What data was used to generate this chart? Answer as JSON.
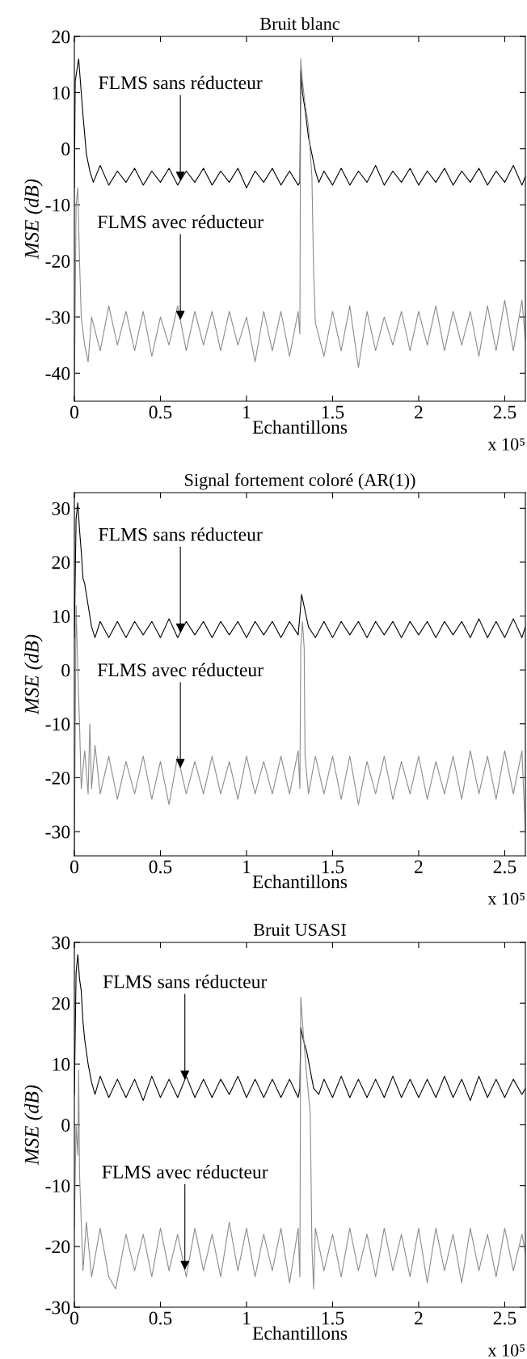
{
  "chart_data": [
    {
      "type": "line",
      "title": "Bruit blanc",
      "xlabel": "Echantillons",
      "ylabel": "MSE (dB)",
      "xlim": [
        0,
        2.62
      ],
      "xticks": [
        0,
        0.5,
        1,
        1.5,
        2,
        2.5
      ],
      "ylim": [
        -45,
        20
      ],
      "yticks": [
        -40,
        -30,
        -20,
        -10,
        0,
        10,
        20
      ],
      "grid": false,
      "series": [
        {
          "name": "FLMS sans réducteur",
          "color": "#000000",
          "x": [
            0,
            0.005,
            0.015,
            0.025,
            0.035,
            0.05,
            0.07,
            0.09,
            0.11,
            0.15,
            0.2,
            0.25,
            0.3,
            0.35,
            0.4,
            0.45,
            0.5,
            0.55,
            0.6,
            0.65,
            0.7,
            0.75,
            0.8,
            0.85,
            0.9,
            0.95,
            1.0,
            1.05,
            1.1,
            1.15,
            1.2,
            1.25,
            1.3,
            1.31,
            1.315,
            1.325,
            1.34,
            1.36,
            1.38,
            1.4,
            1.42,
            1.45,
            1.5,
            1.55,
            1.6,
            1.65,
            1.7,
            1.75,
            1.8,
            1.85,
            1.9,
            1.95,
            2.0,
            2.05,
            2.1,
            2.15,
            2.2,
            2.25,
            2.3,
            2.35,
            2.4,
            2.45,
            2.5,
            2.55,
            2.6,
            2.62
          ],
          "values": [
            -7,
            12,
            14,
            16,
            12,
            6,
            -1,
            -4,
            -6,
            -3,
            -6.5,
            -4,
            -6,
            -3.5,
            -6.5,
            -4,
            -6,
            -3.5,
            -6.5,
            -4,
            -6,
            -3.5,
            -6.5,
            -4,
            -6,
            -3.5,
            -7,
            -4,
            -6,
            -3.5,
            -6.5,
            -4,
            -6.5,
            -6,
            14,
            10,
            7,
            2,
            -1,
            -4,
            -6,
            -4,
            -6.5,
            -3.5,
            -6.5,
            -4,
            -6,
            -3,
            -6.5,
            -4,
            -6,
            -3.5,
            -6.5,
            -4,
            -6,
            -3.5,
            -6.5,
            -4,
            -6,
            -3.5,
            -6.5,
            -4,
            -6,
            -3,
            -6.5,
            -5
          ]
        },
        {
          "name": "FLMS avec réducteur",
          "color": "#8c8c8c",
          "x": [
            0,
            0.01,
            0.02,
            0.03,
            0.04,
            0.06,
            0.08,
            0.1,
            0.15,
            0.2,
            0.25,
            0.3,
            0.35,
            0.4,
            0.45,
            0.5,
            0.55,
            0.6,
            0.65,
            0.7,
            0.75,
            0.8,
            0.85,
            0.9,
            0.95,
            1.0,
            1.05,
            1.1,
            1.15,
            1.2,
            1.25,
            1.3,
            1.31,
            1.315,
            1.325,
            1.34,
            1.36,
            1.38,
            1.39,
            1.4,
            1.45,
            1.5,
            1.55,
            1.6,
            1.65,
            1.7,
            1.75,
            1.8,
            1.85,
            1.9,
            1.95,
            2.0,
            2.05,
            2.1,
            2.15,
            2.2,
            2.25,
            2.3,
            2.35,
            2.4,
            2.45,
            2.5,
            2.55,
            2.6,
            2.62
          ],
          "values": [
            -44,
            -10,
            -7,
            -20,
            -30,
            -35,
            -38,
            -30,
            -36,
            -28,
            -35,
            -29,
            -36,
            -29,
            -37,
            -30,
            -35,
            -28,
            -36,
            -29,
            -35,
            -29,
            -36,
            -29,
            -35,
            -30,
            -38,
            -29,
            -36,
            -29,
            -37,
            -29,
            -33,
            16,
            12,
            8,
            4,
            -5,
            -22,
            -31,
            -37,
            -29,
            -36,
            -28,
            -39,
            -29,
            -36,
            -30,
            -35,
            -29,
            -36,
            -29,
            -35,
            -28,
            -36,
            -29,
            -35,
            -29,
            -37,
            -28,
            -36,
            -27,
            -36,
            -27,
            -34
          ]
        }
      ],
      "annotations": [
        "x 10⁵"
      ]
    },
    {
      "type": "line",
      "title": "Signal fortement coloré (AR(1))",
      "xlabel": "Echantillons",
      "ylabel": "MSE (dB)",
      "xlim": [
        0,
        2.62
      ],
      "xticks": [
        0,
        0.5,
        1,
        1.5,
        2,
        2.5
      ],
      "ylim": [
        -34.5,
        32.9
      ],
      "yticks": [
        -30,
        -20,
        -10,
        0,
        10,
        20,
        30
      ],
      "grid": false,
      "series": [
        {
          "name": "FLMS sans réducteur",
          "color": "#000000",
          "x": [
            0,
            0.01,
            0.02,
            0.03,
            0.04,
            0.05,
            0.06,
            0.08,
            0.1,
            0.12,
            0.15,
            0.2,
            0.25,
            0.3,
            0.35,
            0.4,
            0.45,
            0.5,
            0.55,
            0.6,
            0.65,
            0.7,
            0.75,
            0.8,
            0.85,
            0.9,
            0.95,
            1.0,
            1.05,
            1.1,
            1.15,
            1.2,
            1.25,
            1.3,
            1.31,
            1.32,
            1.34,
            1.36,
            1.4,
            1.45,
            1.5,
            1.55,
            1.6,
            1.65,
            1.7,
            1.75,
            1.8,
            1.85,
            1.9,
            1.95,
            2.0,
            2.05,
            2.1,
            2.15,
            2.2,
            2.25,
            2.3,
            2.35,
            2.4,
            2.45,
            2.5,
            2.55,
            2.6,
            2.62
          ],
          "values": [
            6,
            28,
            31,
            26,
            22,
            17,
            16,
            12,
            8,
            6,
            9,
            6,
            9,
            6,
            9,
            6.5,
            9,
            6,
            9.5,
            6,
            9,
            6.5,
            9,
            6,
            9,
            6.5,
            9,
            6,
            9,
            6.5,
            9,
            6,
            9,
            6.5,
            10,
            14,
            11,
            8,
            6,
            9,
            6,
            9,
            6.5,
            9,
            6,
            9,
            6.5,
            9,
            6,
            9,
            6.5,
            9,
            6,
            9,
            6.5,
            9,
            6,
            9.5,
            6,
            9,
            6,
            9.5,
            6,
            8
          ]
        },
        {
          "name": "FLMS avec réducteur",
          "color": "#8c8c8c",
          "x": [
            0,
            0.01,
            0.02,
            0.03,
            0.04,
            0.06,
            0.08,
            0.09,
            0.1,
            0.12,
            0.15,
            0.2,
            0.25,
            0.3,
            0.35,
            0.4,
            0.45,
            0.5,
            0.55,
            0.6,
            0.65,
            0.7,
            0.75,
            0.8,
            0.85,
            0.9,
            0.95,
            1.0,
            1.05,
            1.1,
            1.15,
            1.2,
            1.25,
            1.3,
            1.31,
            1.315,
            1.325,
            1.335,
            1.34,
            1.36,
            1.4,
            1.45,
            1.5,
            1.55,
            1.6,
            1.65,
            1.7,
            1.75,
            1.8,
            1.85,
            1.9,
            1.95,
            2.0,
            2.05,
            2.1,
            2.15,
            2.2,
            2.25,
            2.3,
            2.35,
            2.4,
            2.45,
            2.5,
            2.55,
            2.6,
            2.62
          ],
          "values": [
            -34,
            12,
            0,
            -10,
            -22,
            -15,
            -23,
            -10,
            -22,
            -14,
            -23,
            -16,
            -24,
            -17,
            -23,
            -16,
            -24,
            -17,
            -25,
            -16,
            -23,
            -17,
            -23,
            -16,
            -23,
            -17,
            -24,
            -16,
            -23,
            -17,
            -23,
            -16,
            -23,
            -15,
            -22,
            4,
            9,
            4,
            -16,
            -23,
            -16,
            -23,
            -16,
            -24,
            -16,
            -25,
            -17,
            -23,
            -16,
            -24,
            -17,
            -23,
            -16,
            -24,
            -17,
            -23,
            -16,
            -24,
            -15,
            -23,
            -16,
            -24,
            -15,
            -23,
            -15,
            -30
          ]
        }
      ],
      "annotations": [
        "x 10⁵"
      ]
    },
    {
      "type": "line",
      "title": "Bruit USASI",
      "xlabel": "Echantillons",
      "ylabel": "MSE (dB)",
      "xlim": [
        0,
        2.62
      ],
      "xticks": [
        0,
        0.5,
        1,
        1.5,
        2,
        2.5
      ],
      "ylim": [
        -30,
        30
      ],
      "yticks": [
        -30,
        -20,
        -10,
        0,
        10,
        20,
        30
      ],
      "grid": false,
      "series": [
        {
          "name": "FLMS sans réducteur",
          "color": "#000000",
          "x": [
            0,
            0.01,
            0.02,
            0.03,
            0.04,
            0.05,
            0.06,
            0.08,
            0.1,
            0.12,
            0.15,
            0.2,
            0.25,
            0.3,
            0.35,
            0.4,
            0.45,
            0.5,
            0.55,
            0.6,
            0.65,
            0.7,
            0.75,
            0.8,
            0.85,
            0.9,
            0.95,
            1.0,
            1.05,
            1.1,
            1.15,
            1.2,
            1.25,
            1.3,
            1.31,
            1.315,
            1.33,
            1.35,
            1.37,
            1.39,
            1.42,
            1.45,
            1.5,
            1.55,
            1.6,
            1.65,
            1.7,
            1.75,
            1.8,
            1.85,
            1.9,
            1.95,
            2.0,
            2.05,
            2.1,
            2.15,
            2.2,
            2.25,
            2.3,
            2.35,
            2.4,
            2.45,
            2.5,
            2.55,
            2.6,
            2.62
          ],
          "values": [
            5,
            25,
            28,
            24,
            22,
            17,
            14,
            10,
            7,
            5,
            8,
            4.5,
            7.5,
            4.5,
            7.5,
            4,
            8,
            4.5,
            7.5,
            4.5,
            8,
            4.5,
            7.5,
            4.5,
            7.5,
            5,
            8,
            4.5,
            7.5,
            4.5,
            7.5,
            4.5,
            7.5,
            4.5,
            6,
            16,
            14,
            12,
            9,
            6,
            5,
            7.5,
            4.5,
            8,
            4.5,
            7.5,
            4.5,
            7.5,
            4.5,
            8,
            4.5,
            7.5,
            4.5,
            7.5,
            4.5,
            8,
            4.5,
            7.5,
            4,
            8,
            4.5,
            7.5,
            4.5,
            7.5,
            5,
            6
          ]
        },
        {
          "name": "FLMS avec réducteur",
          "color": "#8c8c8c",
          "x": [
            0,
            0.01,
            0.02,
            0.025,
            0.03,
            0.04,
            0.05,
            0.07,
            0.1,
            0.15,
            0.2,
            0.24,
            0.3,
            0.35,
            0.4,
            0.45,
            0.5,
            0.55,
            0.6,
            0.65,
            0.7,
            0.75,
            0.8,
            0.85,
            0.9,
            0.95,
            1.0,
            1.05,
            1.1,
            1.15,
            1.2,
            1.25,
            1.3,
            1.31,
            1.315,
            1.33,
            1.35,
            1.37,
            1.38,
            1.39,
            1.4,
            1.45,
            1.5,
            1.55,
            1.6,
            1.65,
            1.7,
            1.75,
            1.8,
            1.85,
            1.9,
            1.95,
            2.0,
            2.05,
            2.1,
            2.15,
            2.2,
            2.25,
            2.3,
            2.35,
            2.4,
            2.45,
            2.5,
            2.55,
            2.6,
            2.62
          ],
          "values": [
            -17,
            0,
            -5,
            9,
            -8,
            -16,
            -24,
            -16,
            -25,
            -17,
            -25,
            -27,
            -18,
            -24,
            -18,
            -25,
            -17,
            -24,
            -18,
            -25,
            -17,
            -24,
            -18,
            -25,
            -16,
            -24,
            -17,
            -25,
            -18,
            -24,
            -17,
            -26,
            -17,
            -25,
            21,
            15,
            8,
            2,
            -20,
            -27,
            -17,
            -24,
            -18,
            -25,
            -17,
            -24,
            -18,
            -25,
            -17,
            -24,
            -18,
            -25,
            -17,
            -26,
            -17,
            -24,
            -18,
            -26,
            -17,
            -24,
            -18,
            -25,
            -17,
            -24,
            -18,
            -21
          ]
        }
      ],
      "annotations": [
        "x 10⁵"
      ]
    }
  ]
}
